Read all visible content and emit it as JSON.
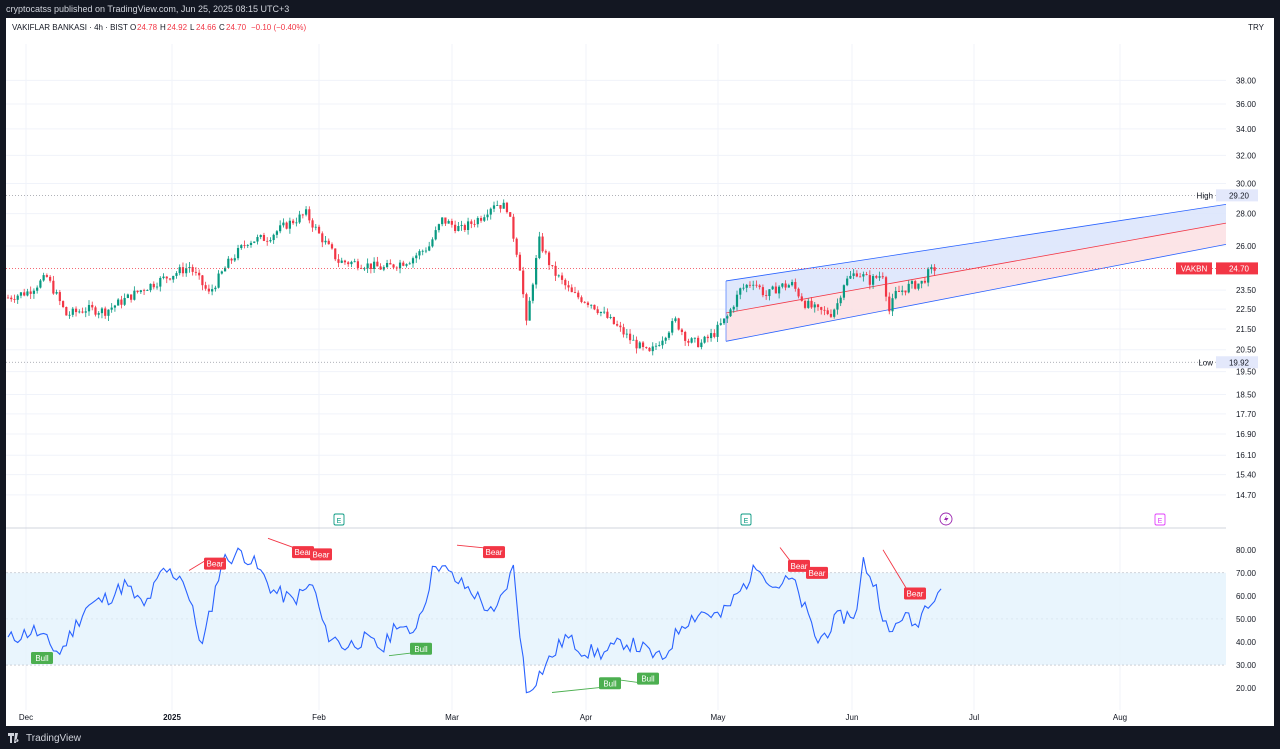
{
  "header": {
    "published": "cryptocatss published on TradingView.com, Jun 25, 2025 08:15 UTC+3"
  },
  "footer": {
    "brand": "TradingView"
  },
  "legend": {
    "symbol": "VAKIFLAR BANKASI · 4h · BIST",
    "o_label": "O",
    "o_value": "24.78",
    "h_label": "H",
    "h_value": "24.92",
    "l_label": "L",
    "l_value": "24.66",
    "c_label": "C",
    "c_value": "24.70",
    "change": "−0.10 (−0.40%)",
    "currency": "TRY"
  },
  "colors": {
    "up": "#089981",
    "down": "#f23645",
    "rsi": "#2962ff",
    "channel_blue_fill": "#dbe4fb",
    "channel_red_fill": "#fbdfe3",
    "bear_label": "#f23645",
    "bull_label": "#4caf50"
  },
  "chart_data": [
    {
      "type": "candlestick",
      "symbol": "VAKBN",
      "timeframe": "4h",
      "scale": "log",
      "x_ticks": [
        "Dec",
        "2025",
        "Feb",
        "Mar",
        "Apr",
        "May",
        "Jun",
        "Jul",
        "Aug"
      ],
      "y_ticks": [
        "38.00",
        "36.00",
        "34.00",
        "32.00",
        "30.00",
        "28.00",
        "26.00",
        "23.50",
        "22.50",
        "21.50",
        "20.50",
        "19.50",
        "18.50",
        "17.70",
        "16.90",
        "16.10",
        "15.40",
        "14.70"
      ],
      "ylim": [
        14.2,
        40.0
      ],
      "last_price": 24.7,
      "last_price_label": "VAKBN",
      "high": {
        "label": "High",
        "value": 29.2
      },
      "low": {
        "label": "Low",
        "value": 19.92
      },
      "price_path": [
        [
          0,
          23.1
        ],
        [
          3,
          23.4
        ],
        [
          6,
          24.2
        ],
        [
          9,
          22.2
        ],
        [
          12,
          22.5
        ],
        [
          15,
          22.4
        ],
        [
          18,
          23.0
        ],
        [
          21,
          23.6
        ],
        [
          25,
          24.3
        ],
        [
          28,
          24.8
        ],
        [
          31,
          23.3
        ],
        [
          34,
          25.0
        ],
        [
          37,
          26.3
        ],
        [
          40,
          26.5
        ],
        [
          43,
          27.3
        ],
        [
          46,
          28.0
        ],
        [
          48,
          26.7
        ],
        [
          51,
          25.1
        ],
        [
          54,
          25.0
        ],
        [
          58,
          24.7
        ],
        [
          62,
          25.2
        ],
        [
          65,
          26.0
        ],
        [
          67,
          27.6
        ],
        [
          70,
          27.0
        ],
        [
          73,
          27.8
        ],
        [
          75,
          28.7
        ],
        [
          77,
          28.4
        ],
        [
          78,
          26.6
        ],
        [
          79,
          24.8
        ],
        [
          80,
          21.7
        ],
        [
          81,
          24.0
        ],
        [
          82,
          26.3
        ],
        [
          84,
          24.6
        ],
        [
          87,
          23.3
        ],
        [
          90,
          22.8
        ],
        [
          93,
          21.9
        ],
        [
          96,
          21.0
        ],
        [
          98,
          20.5
        ],
        [
          99,
          20.3
        ],
        [
          101,
          21.1
        ],
        [
          103,
          21.9
        ],
        [
          105,
          20.9
        ],
        [
          107,
          20.8
        ],
        [
          109,
          21.3
        ],
        [
          111,
          22.1
        ],
        [
          113,
          23.5
        ],
        [
          115,
          24.0
        ],
        [
          117,
          23.2
        ],
        [
          119,
          23.7
        ],
        [
          121,
          23.8
        ],
        [
          123,
          22.8
        ],
        [
          125,
          22.4
        ],
        [
          127,
          22.3
        ],
        [
          128,
          22.8
        ],
        [
          129,
          23.9
        ],
        [
          131,
          24.5
        ],
        [
          133,
          24.0
        ],
        [
          135,
          24.4
        ],
        [
          136,
          22.4
        ],
        [
          137,
          23.3
        ],
        [
          139,
          23.7
        ],
        [
          141,
          23.9
        ],
        [
          142,
          24.4
        ],
        [
          143,
          24.7
        ]
      ],
      "price_path_axis": "trading-day index from start to last bar",
      "annotations": [
        {
          "type": "regression-channel",
          "upper_fill": "blue",
          "lower_fill": "red"
        },
        {
          "type": "earnings-marker",
          "label": "E",
          "count": 2
        },
        {
          "type": "dividend-marker",
          "count": 1
        },
        {
          "type": "earnings-marker-future",
          "label": "E",
          "count": 1
        }
      ]
    },
    {
      "type": "line",
      "name": "RSI",
      "y_ticks": [
        "80.00",
        "70.00",
        "60.00",
        "50.00",
        "40.00",
        "30.00",
        "20.00"
      ],
      "ylim": [
        13,
        86
      ],
      "band": [
        30,
        70
      ],
      "midline": 50,
      "values_path": [
        [
          0,
          41
        ],
        [
          4,
          45
        ],
        [
          8,
          35
        ],
        [
          12,
          55
        ],
        [
          16,
          60
        ],
        [
          18,
          65
        ],
        [
          21,
          55
        ],
        [
          24,
          71
        ],
        [
          27,
          68
        ],
        [
          30,
          38
        ],
        [
          33,
          75
        ],
        [
          36,
          79
        ],
        [
          38,
          74
        ],
        [
          41,
          62
        ],
        [
          44,
          58
        ],
        [
          47,
          65
        ],
        [
          49,
          44
        ],
        [
          52,
          38
        ],
        [
          55,
          41
        ],
        [
          58,
          37
        ],
        [
          60,
          49
        ],
        [
          62,
          42
        ],
        [
          64,
          55
        ],
        [
          66,
          75
        ],
        [
          69,
          67
        ],
        [
          72,
          61
        ],
        [
          75,
          51
        ],
        [
          78,
          72
        ],
        [
          80,
          18
        ],
        [
          83,
          30
        ],
        [
          86,
          42
        ],
        [
          89,
          36
        ],
        [
          92,
          35
        ],
        [
          95,
          40
        ],
        [
          98,
          37
        ],
        [
          101,
          32
        ],
        [
          104,
          48
        ],
        [
          107,
          53
        ],
        [
          110,
          51
        ],
        [
          113,
          62
        ],
        [
          116,
          74
        ],
        [
          118,
          64
        ],
        [
          121,
          67
        ],
        [
          123,
          54
        ],
        [
          125,
          40
        ],
        [
          128,
          50
        ],
        [
          131,
          53
        ],
        [
          132,
          75
        ],
        [
          134,
          63
        ],
        [
          136,
          42
        ],
        [
          138,
          52
        ],
        [
          140,
          47
        ],
        [
          142,
          58
        ],
        [
          144,
          64
        ]
      ],
      "divergence_labels": [
        {
          "text": "Bull",
          "kind": "bull"
        },
        {
          "text": "Bear",
          "kind": "bear"
        },
        {
          "text": "Bear",
          "kind": "bear"
        },
        {
          "text": "Bear",
          "kind": "bear"
        },
        {
          "text": "Bull",
          "kind": "bull"
        },
        {
          "text": "Bear",
          "kind": "bear"
        },
        {
          "text": "Bull",
          "kind": "bull"
        },
        {
          "text": "Bull",
          "kind": "bull"
        },
        {
          "text": "Bear",
          "kind": "bear"
        },
        {
          "text": "Bear",
          "kind": "bear"
        },
        {
          "text": "Bear",
          "kind": "bear"
        }
      ]
    }
  ]
}
